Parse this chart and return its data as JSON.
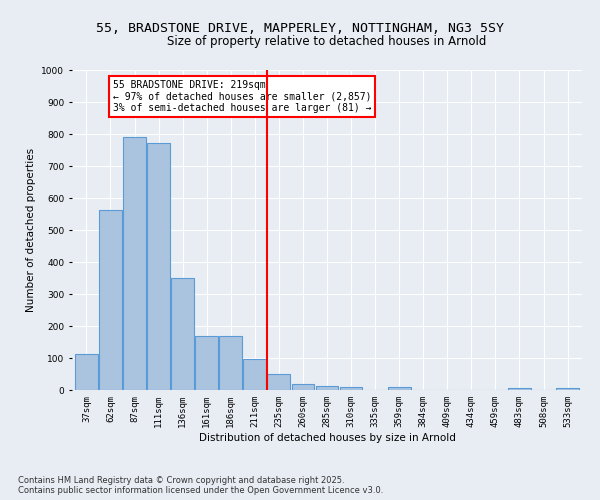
{
  "title_line1": "55, BRADSTONE DRIVE, MAPPERLEY, NOTTINGHAM, NG3 5SY",
  "title_line2": "Size of property relative to detached houses in Arnold",
  "xlabel": "Distribution of detached houses by size in Arnold",
  "ylabel": "Number of detached properties",
  "bar_categories": [
    "37sqm",
    "62sqm",
    "87sqm",
    "111sqm",
    "136sqm",
    "161sqm",
    "186sqm",
    "211sqm",
    "235sqm",
    "260sqm",
    "285sqm",
    "310sqm",
    "335sqm",
    "359sqm",
    "384sqm",
    "409sqm",
    "434sqm",
    "459sqm",
    "483sqm",
    "508sqm",
    "533sqm"
  ],
  "bar_values": [
    112,
    562,
    790,
    772,
    350,
    168,
    168,
    98,
    50,
    18,
    12,
    10,
    0,
    10,
    0,
    0,
    0,
    0,
    5,
    0,
    5
  ],
  "bar_color": "#aac4e0",
  "bar_edge_color": "#5b9bd5",
  "background_color": "#e8edf4",
  "grid_color": "#ffffff",
  "vline_x_index": 7.5,
  "vline_color": "red",
  "ylim": [
    0,
    1000
  ],
  "yticks": [
    0,
    100,
    200,
    300,
    400,
    500,
    600,
    700,
    800,
    900,
    1000
  ],
  "annotation_title": "55 BRADSTONE DRIVE: 219sqm",
  "annotation_line1": "← 97% of detached houses are smaller (2,857)",
  "annotation_line2": "3% of semi-detached houses are larger (81) →",
  "annotation_box_color": "red",
  "footer_line1": "Contains HM Land Registry data © Crown copyright and database right 2025.",
  "footer_line2": "Contains public sector information licensed under the Open Government Licence v3.0.",
  "title_fontsize": 9.5,
  "subtitle_fontsize": 8.5,
  "axis_label_fontsize": 7.5,
  "tick_fontsize": 6.5,
  "annotation_fontsize": 7,
  "footer_fontsize": 6
}
